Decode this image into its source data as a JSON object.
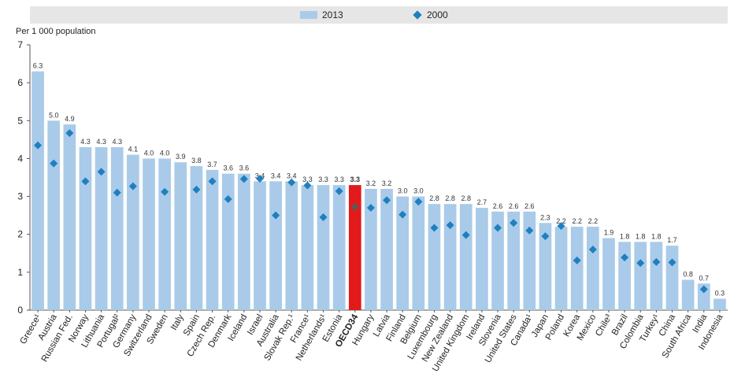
{
  "chart_data": {
    "type": "bar",
    "ylabel": "Per 1 000 population",
    "ylim": [
      0,
      7
    ],
    "yticks": [
      0,
      1,
      2,
      3,
      4,
      5,
      6,
      7
    ],
    "grid": false,
    "legend_placement": "top",
    "highlight_category": "OECD34",
    "categories": [
      "Greece¹",
      "Austria",
      "Russian Fed.",
      "Norway",
      "Lithuania",
      "Portugal²",
      "Germany",
      "Switzerland",
      "Sweden",
      "Italy",
      "Spain",
      "Czech Rep.",
      "Denmark",
      "Iceland",
      "Israel",
      "Australia",
      "Slovak Rep.¹",
      "France¹",
      "Netherlands¹",
      "Estonia",
      "OECD34",
      "Hungary",
      "Latvia",
      "Finland",
      "Belgium",
      "Luxembourg",
      "New Zealand",
      "United Kingdom",
      "Ireland",
      "Slovenia",
      "United States",
      "Canada¹",
      "Japan",
      "Poland",
      "Korea",
      "Mexico",
      "Chile³",
      "Brazil",
      "Colombia",
      "Turkey¹",
      "China",
      "South Africa",
      "India",
      "Indonesia"
    ],
    "series": [
      {
        "name": "2013",
        "style": "bar",
        "values": [
          6.3,
          5.0,
          4.9,
          4.3,
          4.3,
          4.3,
          4.1,
          4.0,
          4.0,
          3.9,
          3.8,
          3.7,
          3.6,
          3.6,
          3.4,
          3.4,
          3.4,
          3.3,
          3.3,
          3.3,
          3.3,
          3.2,
          3.2,
          3.0,
          3.0,
          2.8,
          2.8,
          2.8,
          2.7,
          2.6,
          2.6,
          2.6,
          2.3,
          2.2,
          2.2,
          2.2,
          1.9,
          1.8,
          1.8,
          1.8,
          1.7,
          0.8,
          0.7,
          0.3
        ],
        "labels": [
          "6.3",
          "5.0",
          "4.9",
          "4.3",
          "4.3",
          "4.3",
          "4.1",
          "4.0",
          "4.0",
          "3.9",
          "3.8",
          "3.7",
          "3.6",
          "3.6",
          "3.4",
          "3.4",
          "3.4",
          "3.3",
          "3.3",
          "3.3",
          "3.3",
          "3.2",
          "3.2",
          "3.0",
          "3.0",
          "2.8",
          "2.8",
          "2.8",
          "2.7",
          "2.6",
          "2.6",
          "2.6",
          "2.3",
          "2.2",
          "2.2",
          "2.2",
          "1.9",
          "1.8",
          "1.8",
          "1.8",
          "1.7",
          "0.8",
          "0.7",
          "0.3"
        ]
      },
      {
        "name": "2000",
        "style": "diamond",
        "values": [
          4.35,
          3.87,
          4.67,
          3.4,
          3.65,
          3.1,
          3.27,
          null,
          3.12,
          null,
          3.18,
          3.4,
          2.93,
          3.46,
          3.47,
          2.5,
          3.37,
          3.29,
          2.45,
          3.14,
          2.72,
          2.7,
          2.9,
          2.52,
          2.86,
          2.17,
          2.24,
          1.98,
          null,
          2.17,
          2.3,
          2.1,
          1.95,
          2.22,
          1.31,
          1.6,
          null,
          1.39,
          1.24,
          1.27,
          1.26,
          null,
          0.55,
          null
        ]
      }
    ]
  },
  "colors": {
    "bar": "#a9cbe9",
    "highlight": "#e31a1c",
    "diamond": "#1f7fbf",
    "highlight_diamond": "#5a5a5a",
    "axis": "#555555"
  }
}
